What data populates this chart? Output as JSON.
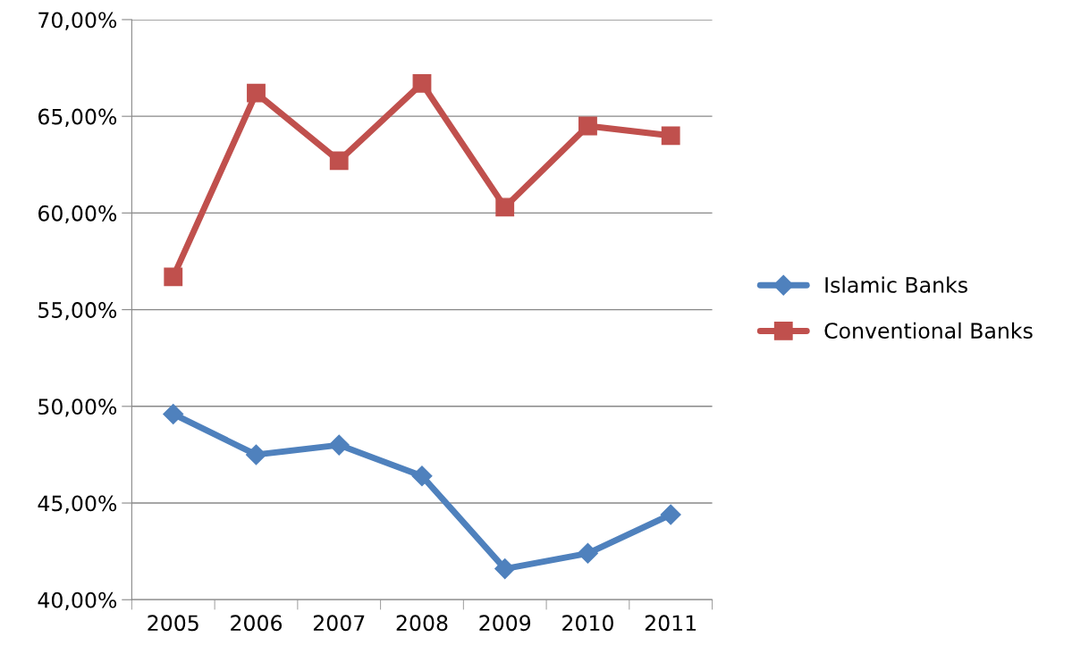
{
  "chart_data": {
    "type": "line",
    "categories": [
      "2005",
      "2006",
      "2007",
      "2008",
      "2009",
      "2010",
      "2011"
    ],
    "series": [
      {
        "name": "Islamic Banks",
        "color": "#4f81bd",
        "marker": "diamond",
        "values": [
          49.6,
          47.5,
          48.0,
          46.4,
          41.6,
          42.4,
          44.4
        ]
      },
      {
        "name": "Conventional Banks",
        "color": "#c0504d",
        "marker": "square",
        "values": [
          56.7,
          66.2,
          62.7,
          66.7,
          60.3,
          64.5,
          64.0
        ]
      }
    ],
    "ylim": [
      40,
      70
    ],
    "yticks": [
      {
        "value": 40,
        "label": "40,00%"
      },
      {
        "value": 45,
        "label": "45,00%"
      },
      {
        "value": 50,
        "label": "50,00%"
      },
      {
        "value": 55,
        "label": "55,00%"
      },
      {
        "value": 60,
        "label": "60,00%"
      },
      {
        "value": 65,
        "label": "65,00%"
      },
      {
        "value": 70,
        "label": "70,00%"
      }
    ],
    "grid": "y",
    "legend": "right",
    "line_style": "solid"
  }
}
